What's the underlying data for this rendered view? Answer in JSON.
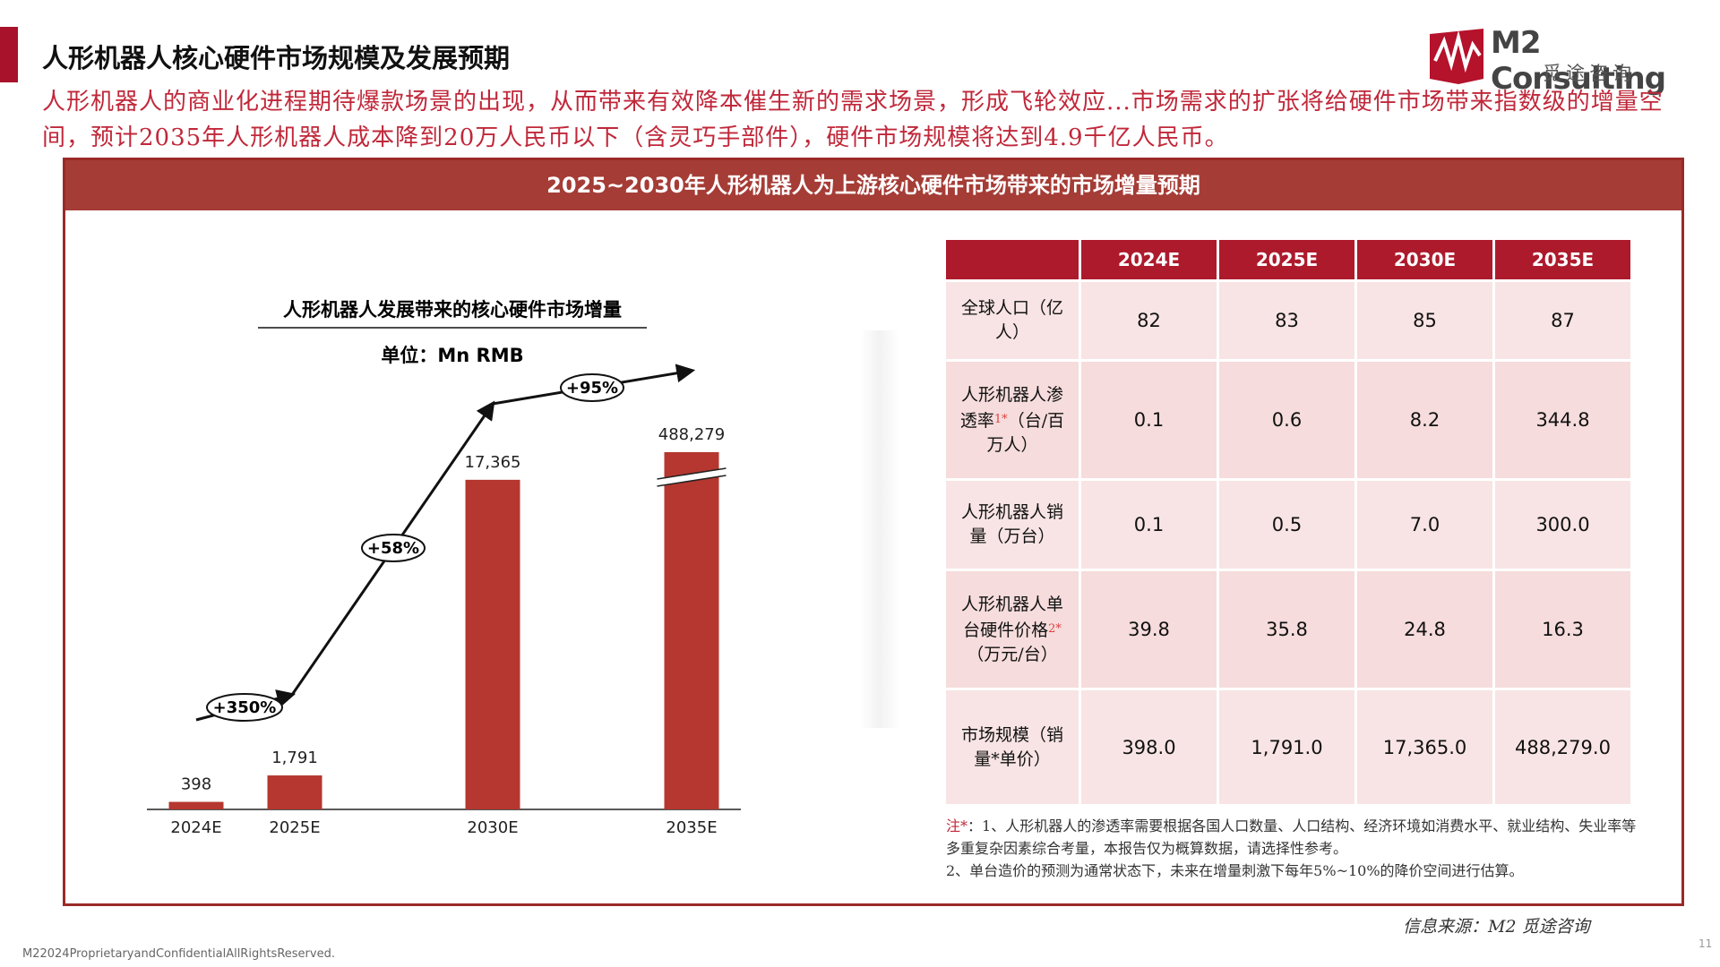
{
  "header": {
    "title": "人形机器人核心硬件市场规模及发展预期",
    "intro": "人形机器人的商业化进程期待爆款场景的出现，从而带来有效降本催生新的需求场景，形成飞轮效应...市场需求的扩张将给硬件市场带来指数级的增量空间，预计2035年人形机器人成本降到20万人民币以下（含灵巧手部件），硬件市场规模将达到4.9千亿人民币。",
    "logo": "M2 Consulting",
    "logo_cn": "觅途咨询"
  },
  "panel": {
    "title": "2025~2030年人形机器人为上游核心硬件市场带来的市场增量预期"
  },
  "chart_data": {
    "type": "bar",
    "title": "人形机器人发展带来的核心硬件市场增量",
    "subtitle": "单位：Mn RMB",
    "categories": [
      "2024E",
      "2025E",
      "2030E",
      "2035E"
    ],
    "values": [
      398,
      1791,
      17365,
      488279
    ],
    "value_labels": [
      "398",
      "1,791",
      "17,365",
      "488,279"
    ],
    "color": "#b5372f",
    "ylim": [
      0,
      20000
    ],
    "axis_break": true,
    "annotations": [
      "+350%",
      "+58%",
      "+95%"
    ]
  },
  "table": {
    "header": [
      "2024E",
      "2025E",
      "2030E",
      "2035E"
    ],
    "rows": [
      {
        "label": "全球人口（亿人）",
        "values": [
          "82",
          "83",
          "85",
          "87"
        ]
      },
      {
        "label": "人形机器人渗透率",
        "note": "1*",
        "unit": "（台/百万人）",
        "values": [
          "0.1",
          "0.6",
          "8.2",
          "344.8"
        ]
      },
      {
        "label": "人形机器人销量（万台）",
        "values": [
          "0.1",
          "0.5",
          "7.0",
          "300.0"
        ]
      },
      {
        "label": "人形机器人单台硬件价格",
        "note": "2*",
        "unit": "（万元/台）",
        "values": [
          "39.8",
          "35.8",
          "24.8",
          "16.3"
        ]
      },
      {
        "label": "市场规模",
        "unit": "（销量*单价）",
        "values": [
          "398.0",
          "1,791.0",
          "17,365.0",
          "488,279.0"
        ]
      }
    ]
  },
  "notes": {
    "prefix": "注*",
    "items": [
      "：1、人形机器人的渗透率需要根据各国人口数量、人口结构、经济环境如消费水平、就业结构、失业率等多重复杂因素综合考量，本报告仅为概算数据，请选择性参考。",
      "2、单台造价的预测为通常状态下，未来在增量刺激下每年5%~10%的降价空间进行估算。"
    ]
  },
  "source": "信息来源：M2 觅途咨询",
  "footer": "M22024ProprietaryandConfidentialAllRightsReserved.",
  "page_number": "11"
}
